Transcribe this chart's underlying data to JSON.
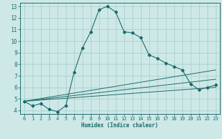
{
  "xlabel": "Humidex (Indice chaleur)",
  "ylabel": "",
  "background_color": "#cde8e6",
  "grid_color": "#aacfcd",
  "line_color": "#1a6b6b",
  "xlim": [
    -0.5,
    23.5
  ],
  "ylim": [
    3.7,
    13.3
  ],
  "xticks": [
    0,
    1,
    2,
    3,
    4,
    5,
    6,
    7,
    8,
    9,
    10,
    11,
    12,
    13,
    14,
    15,
    16,
    17,
    18,
    19,
    20,
    21,
    22,
    23
  ],
  "yticks": [
    4,
    5,
    6,
    7,
    8,
    9,
    10,
    11,
    12,
    13
  ],
  "line1_x": [
    0,
    1,
    2,
    3,
    4,
    5,
    6,
    7,
    8,
    9,
    10,
    11,
    12,
    13,
    14,
    15,
    16,
    17,
    18,
    19,
    20,
    21,
    22,
    23
  ],
  "line1_y": [
    4.8,
    4.4,
    4.6,
    4.1,
    3.9,
    4.4,
    7.3,
    9.4,
    10.8,
    12.7,
    13.0,
    12.5,
    10.8,
    10.7,
    10.3,
    8.8,
    8.5,
    8.1,
    7.8,
    7.5,
    6.3,
    5.8,
    6.0,
    6.2
  ],
  "line2_x": [
    0,
    23
  ],
  "line2_y": [
    4.8,
    7.5
  ],
  "line3_x": [
    0,
    23
  ],
  "line3_y": [
    4.8,
    6.7
  ],
  "line4_x": [
    0,
    23
  ],
  "line4_y": [
    4.8,
    6.0
  ]
}
